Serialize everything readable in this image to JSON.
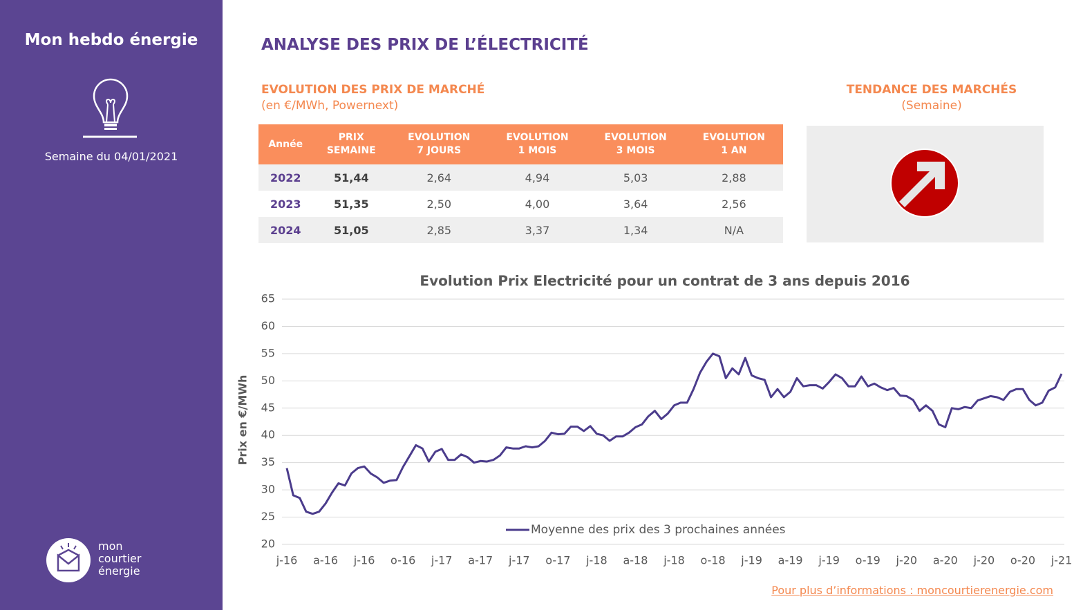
{
  "sidebar": {
    "title": "Mon hebdo énergie",
    "week": "Semaine du 04/01/2021",
    "logo": [
      "mon",
      "courtier",
      "énergie"
    ]
  },
  "header": {
    "title": "ANALYSE DES PRIX DE L’ÉLECTRICITÉ"
  },
  "market": {
    "title": "EVOLUTION DES PRIX DE MARCHÉ",
    "subtitle": "(en €/MWh, Powernext)"
  },
  "table": {
    "columns": [
      [
        "Année"
      ],
      [
        "PRIX",
        "SEMAINE"
      ],
      [
        "EVOLUTION",
        "7 JOURS"
      ],
      [
        "EVOLUTION",
        "1 MOIS"
      ],
      [
        "EVOLUTION",
        "3 MOIS"
      ],
      [
        "EVOLUTION",
        "1 AN"
      ]
    ],
    "rows": [
      [
        "2022",
        "51,44",
        "2,64",
        "4,94",
        "5,03",
        "2,88"
      ],
      [
        "2023",
        "51,35",
        "2,50",
        "4,00",
        "3,64",
        "2,56"
      ],
      [
        "2024",
        "51,05",
        "2,85",
        "3,37",
        "1,34",
        "N/A"
      ]
    ]
  },
  "trend": {
    "title": "TENDANCE DES MARCHÉS",
    "subtitle": "(Semaine)"
  },
  "footer": {
    "link": "Pour plus d’informations : moncourtierenergie.com"
  },
  "chart_data": {
    "type": "line",
    "title": "Evolution Prix Electricité pour un contrat de 3 ans depuis 2016",
    "y_label": "Prix en €/MWh",
    "ylim": [
      20,
      65
    ],
    "yticks": [
      20,
      25,
      30,
      35,
      40,
      45,
      50,
      55,
      60,
      65
    ],
    "grid": true,
    "legend": "bottom",
    "categories": [
      "j-16",
      null,
      null,
      null,
      null,
      null,
      "a-16",
      null,
      null,
      null,
      null,
      null,
      "j-16",
      null,
      null,
      null,
      null,
      null,
      "o-16",
      null,
      null,
      null,
      null,
      null,
      "j-17",
      null,
      null,
      null,
      null,
      null,
      "a-17",
      null,
      null,
      null,
      null,
      null,
      "j-17",
      null,
      null,
      null,
      null,
      null,
      "o-17",
      null,
      null,
      null,
      null,
      null,
      "j-18",
      null,
      null,
      null,
      null,
      null,
      "a-18",
      null,
      null,
      null,
      null,
      null,
      "j-18",
      null,
      null,
      null,
      null,
      null,
      "o-18",
      null,
      null,
      null,
      null,
      null,
      "j-19",
      null,
      null,
      null,
      null,
      null,
      "a-19",
      null,
      null,
      null,
      null,
      null,
      "j-19",
      null,
      null,
      null,
      null,
      null,
      "o-19",
      null,
      null,
      null,
      null,
      null,
      "j-20",
      null,
      null,
      null,
      null,
      null,
      "a-20",
      null,
      null,
      null,
      null,
      null,
      "j-20",
      null,
      null,
      null,
      null,
      null,
      "o-20",
      null,
      null,
      null,
      null,
      null,
      "j-21"
    ],
    "series": [
      {
        "name": "Moyenne des prix des 3 prochaines années",
        "color": "#4b3c8c",
        "values": [
          34,
          29,
          28.5,
          26,
          25.6,
          26,
          27.5,
          29.5,
          31.2,
          30.8,
          33,
          34,
          34.3,
          33,
          32.3,
          31.3,
          31.7,
          31.8,
          34.2,
          36.2,
          38.2,
          37.6,
          35.2,
          37,
          37.5,
          35.5,
          35.5,
          36.5,
          36,
          35,
          35.3,
          35.2,
          35.5,
          36.3,
          37.8,
          37.6,
          37.6,
          38,
          37.8,
          38,
          39,
          40.5,
          40.2,
          40.3,
          41.6,
          41.6,
          40.8,
          41.7,
          40.3,
          40,
          39,
          39.8,
          39.8,
          40.5,
          41.5,
          42,
          43.5,
          44.5,
          43,
          44,
          45.5,
          46,
          46,
          48.5,
          51.5,
          53.5,
          55,
          54.5,
          50.5,
          52.3,
          51.2,
          54.2,
          51,
          50.5,
          50.2,
          47,
          48.5,
          47,
          48,
          50.5,
          49,
          49.2,
          49.2,
          48.6,
          49.8,
          51.2,
          50.5,
          49,
          49,
          50.8,
          49,
          49.5,
          48.8,
          48.3,
          48.7,
          47.3,
          47.2,
          46.5,
          44.5,
          45.5,
          44.5,
          42,
          41.5,
          45,
          44.8,
          45.2,
          45,
          46.4,
          46.8,
          47.2,
          47,
          46.5,
          48,
          48.5,
          48.5,
          46.5,
          45.5,
          46,
          48.2,
          48.8,
          51.3
        ]
      }
    ]
  }
}
